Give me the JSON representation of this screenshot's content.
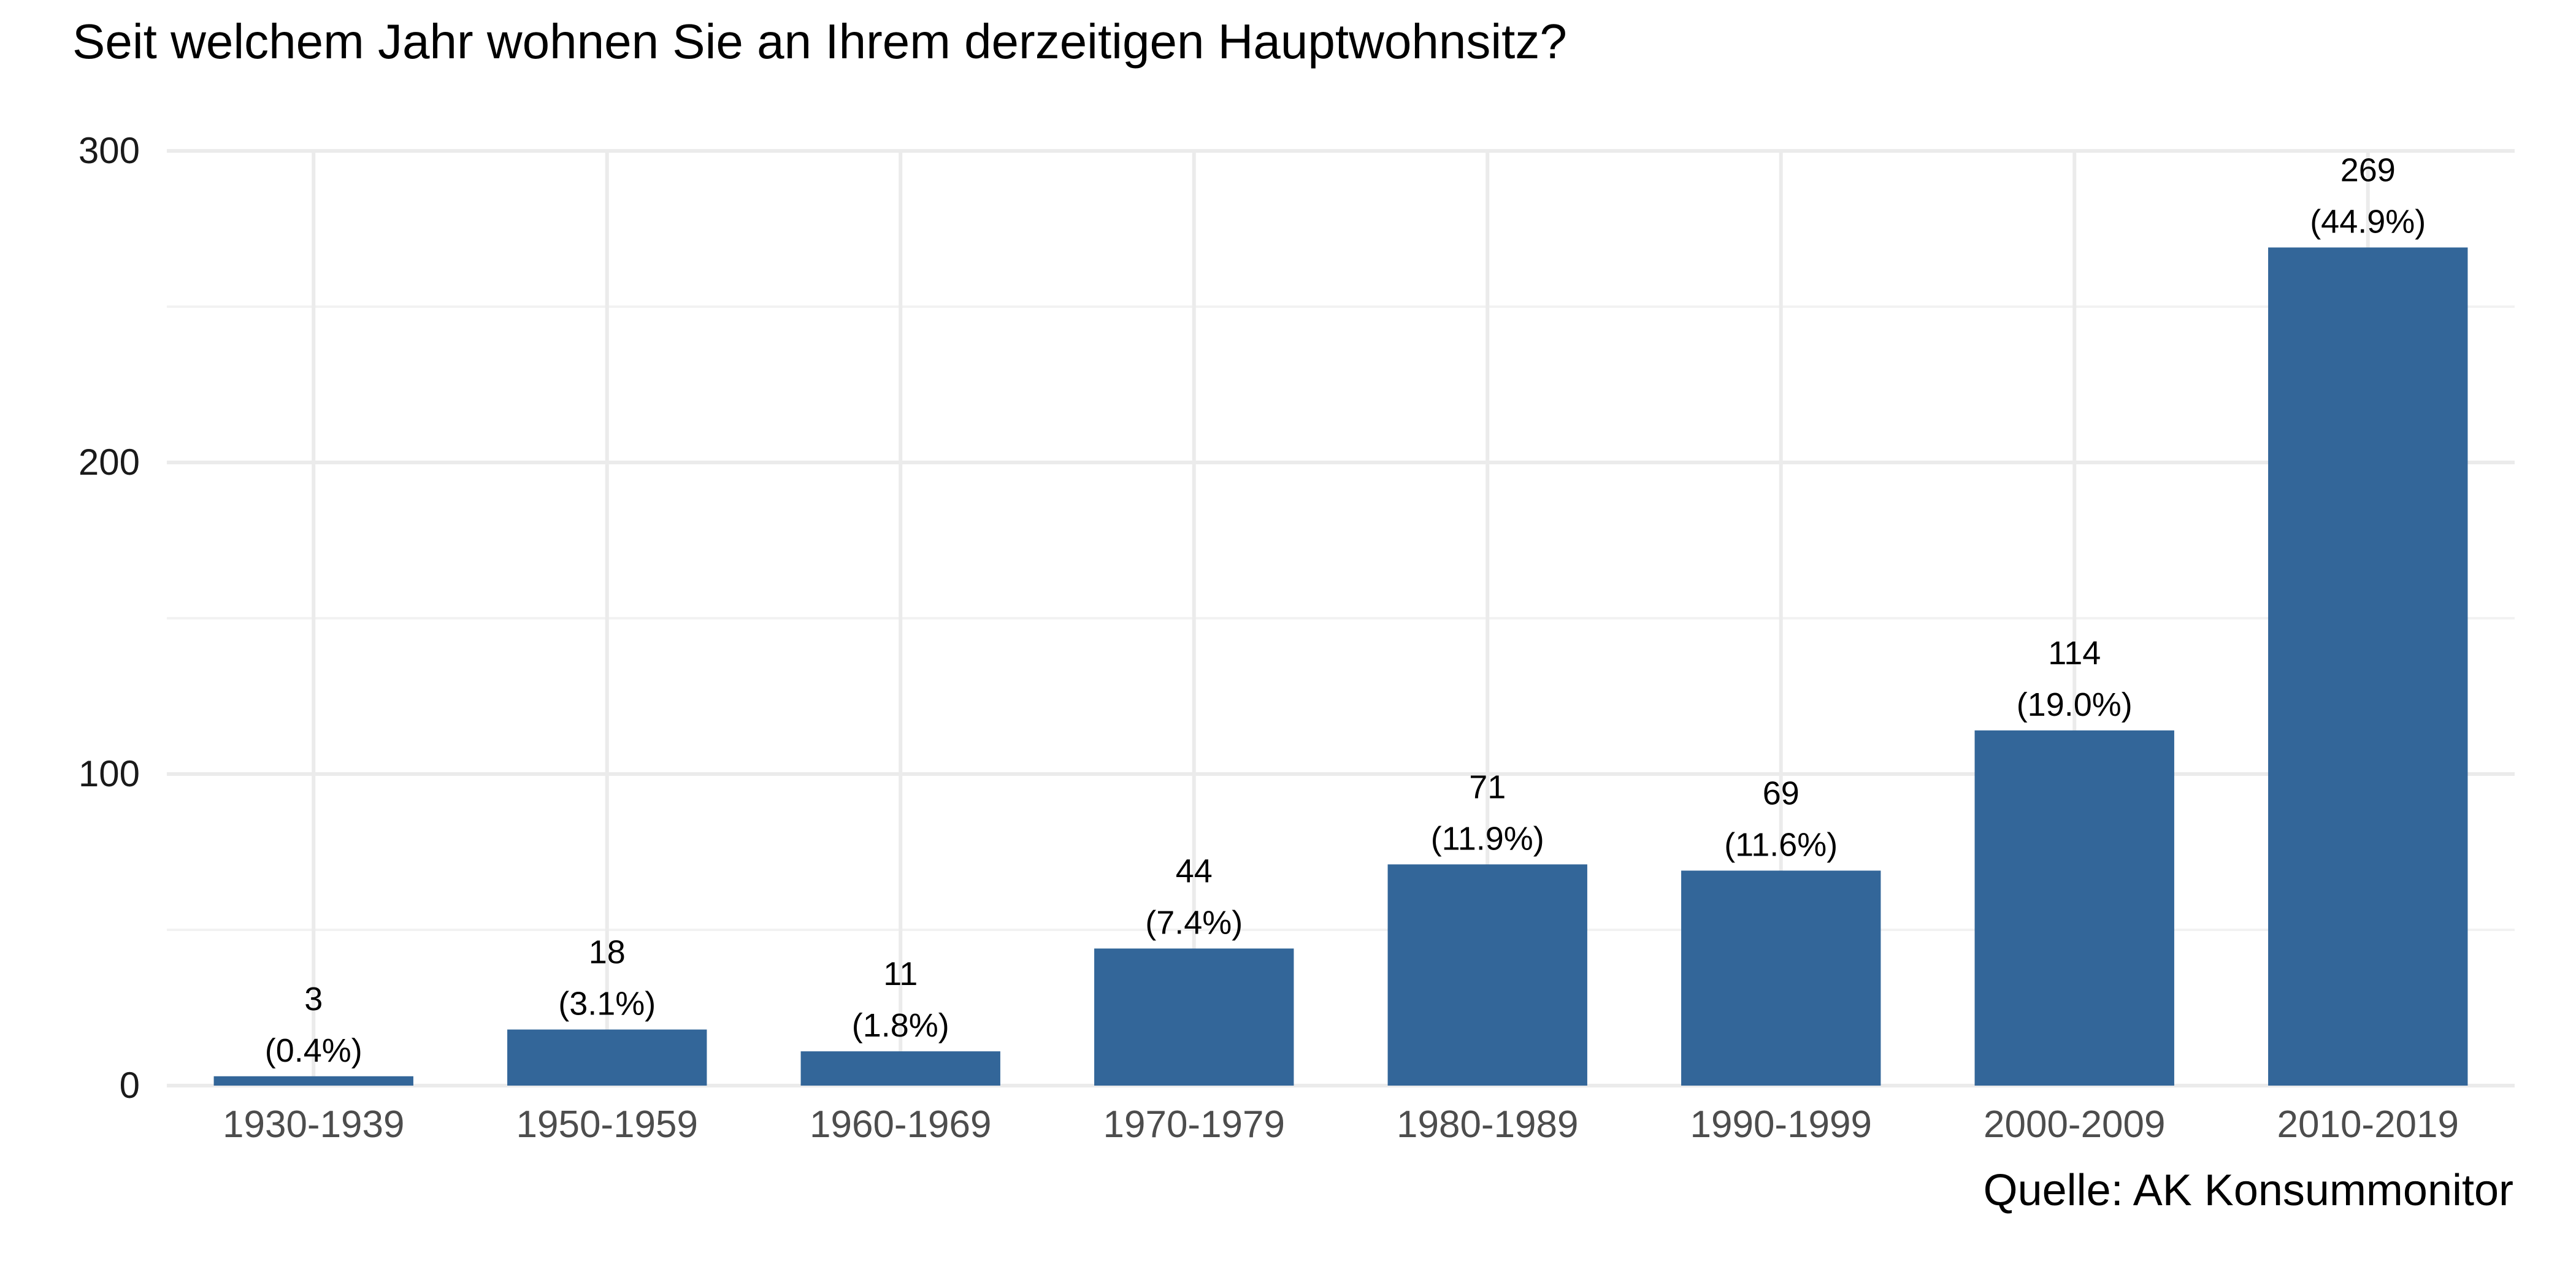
{
  "chart_data": {
    "type": "bar",
    "title": "Seit welchem Jahr wohnen Sie an Ihrem derzeitigen Hauptwohnsitz?",
    "categories": [
      "1930-1939",
      "1950-1959",
      "1960-1969",
      "1970-1979",
      "1980-1989",
      "1990-1999",
      "2000-2009",
      "2010-2019"
    ],
    "values": [
      3,
      18,
      11,
      44,
      71,
      69,
      114,
      269
    ],
    "percent_labels": [
      "(0.4%)",
      "(3.1%)",
      "(1.8%)",
      "(7.4%)",
      "(11.9%)",
      "(11.6%)",
      "(19.0%)",
      "(44.9%)"
    ],
    "yticks": [
      0,
      100,
      200,
      300
    ],
    "ylim": [
      0,
      300
    ],
    "xlabel": "",
    "ylabel": "",
    "grid": true,
    "bar_color": "#336699",
    "source": "Quelle: AK Konsummonitor"
  }
}
